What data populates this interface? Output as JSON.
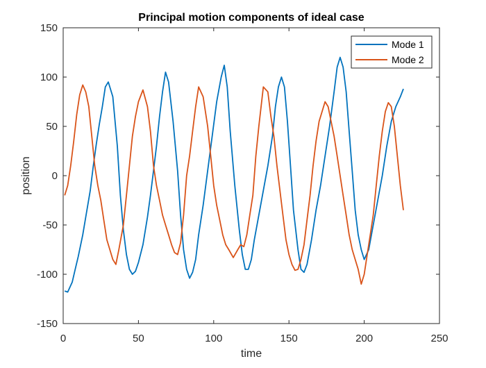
{
  "chart_data": {
    "type": "line",
    "title": "Principal motion components of ideal case",
    "xlabel": "time",
    "ylabel": "position",
    "xlim": [
      0,
      250
    ],
    "ylim": [
      -150,
      150
    ],
    "xticks": [
      0,
      50,
      100,
      150,
      200,
      250
    ],
    "yticks": [
      -150,
      -100,
      -50,
      0,
      50,
      100,
      150
    ],
    "grid": false,
    "legend_position": "top-right",
    "series": [
      {
        "name": "Mode 1",
        "color": "#0072BD",
        "x": [
          1,
          3,
          6,
          8,
          10,
          13,
          15,
          18,
          20,
          22,
          24,
          26,
          28,
          30,
          33,
          36,
          38,
          40,
          42,
          44,
          46,
          48,
          50,
          53,
          56,
          58,
          60,
          62,
          64,
          66,
          68,
          70,
          73,
          76,
          78,
          80,
          82,
          84,
          86,
          88,
          90,
          93,
          96,
          99,
          102,
          105,
          107,
          109,
          111,
          114,
          117,
          119,
          121,
          123,
          125,
          127,
          130,
          133,
          136,
          139,
          141,
          143,
          145,
          147,
          149,
          151,
          153,
          156,
          158,
          160,
          162,
          165,
          168,
          171,
          174,
          177,
          180,
          182,
          184,
          186,
          188,
          190,
          192,
          194,
          196,
          198,
          200,
          203,
          206,
          209,
          212,
          215,
          218,
          221,
          224,
          226
        ],
        "y": [
          -117,
          -118,
          -108,
          -95,
          -82,
          -60,
          -42,
          -15,
          10,
          32,
          52,
          70,
          90,
          95,
          80,
          30,
          -20,
          -55,
          -80,
          -95,
          -100,
          -97,
          -88,
          -70,
          -42,
          -20,
          5,
          30,
          60,
          85,
          105,
          95,
          55,
          5,
          -40,
          -75,
          -95,
          -104,
          -98,
          -85,
          -60,
          -30,
          5,
          40,
          75,
          100,
          112,
          90,
          45,
          -10,
          -55,
          -80,
          -95,
          -95,
          -85,
          -65,
          -40,
          -15,
          10,
          40,
          70,
          90,
          100,
          90,
          55,
          10,
          -35,
          -75,
          -95,
          -98,
          -90,
          -65,
          -35,
          -10,
          20,
          50,
          85,
          110,
          120,
          110,
          85,
          45,
          5,
          -35,
          -60,
          -75,
          -85,
          -75,
          -50,
          -25,
          0,
          30,
          55,
          70,
          80,
          88
        ]
      },
      {
        "name": "Mode 2",
        "color": "#D95319",
        "x": [
          1,
          3,
          5,
          7,
          9,
          11,
          13,
          15,
          17,
          19,
          21,
          23,
          25,
          27,
          29,
          31,
          33,
          35,
          37,
          40,
          42,
          44,
          46,
          48,
          50,
          53,
          56,
          58,
          60,
          62,
          64,
          66,
          68,
          70,
          72,
          74,
          76,
          78,
          80,
          82,
          84,
          86,
          88,
          90,
          93,
          96,
          98,
          100,
          102,
          104,
          106,
          108,
          110,
          113,
          116,
          118,
          120,
          122,
          124,
          126,
          128,
          130,
          133,
          136,
          138,
          140,
          142,
          144,
          146,
          148,
          150,
          152,
          154,
          156,
          158,
          160,
          162,
          164,
          166,
          168,
          170,
          172,
          174,
          176,
          178,
          180,
          182,
          184,
          186,
          188,
          190,
          192,
          194,
          196,
          198,
          200,
          202,
          204,
          206,
          208,
          210,
          212,
          214,
          216,
          218,
          220,
          222,
          224,
          226
        ],
        "y": [
          -20,
          -10,
          10,
          35,
          62,
          82,
          92,
          85,
          70,
          40,
          10,
          -10,
          -25,
          -45,
          -65,
          -75,
          -85,
          -90,
          -75,
          -50,
          -20,
          10,
          40,
          60,
          75,
          87,
          70,
          45,
          10,
          -10,
          -25,
          -40,
          -50,
          -60,
          -70,
          -78,
          -80,
          -68,
          -40,
          0,
          20,
          45,
          70,
          90,
          80,
          50,
          20,
          -10,
          -30,
          -45,
          -60,
          -70,
          -75,
          -83,
          -75,
          -70,
          -72,
          -60,
          -40,
          -20,
          20,
          50,
          90,
          85,
          60,
          40,
          10,
          -15,
          -40,
          -65,
          -80,
          -90,
          -96,
          -95,
          -85,
          -70,
          -45,
          -20,
          10,
          35,
          55,
          65,
          75,
          70,
          55,
          40,
          20,
          0,
          -20,
          -40,
          -60,
          -75,
          -85,
          -95,
          -110,
          -100,
          -80,
          -60,
          -40,
          -10,
          20,
          45,
          65,
          74,
          70,
          50,
          20,
          -10,
          -35
        ]
      }
    ]
  }
}
